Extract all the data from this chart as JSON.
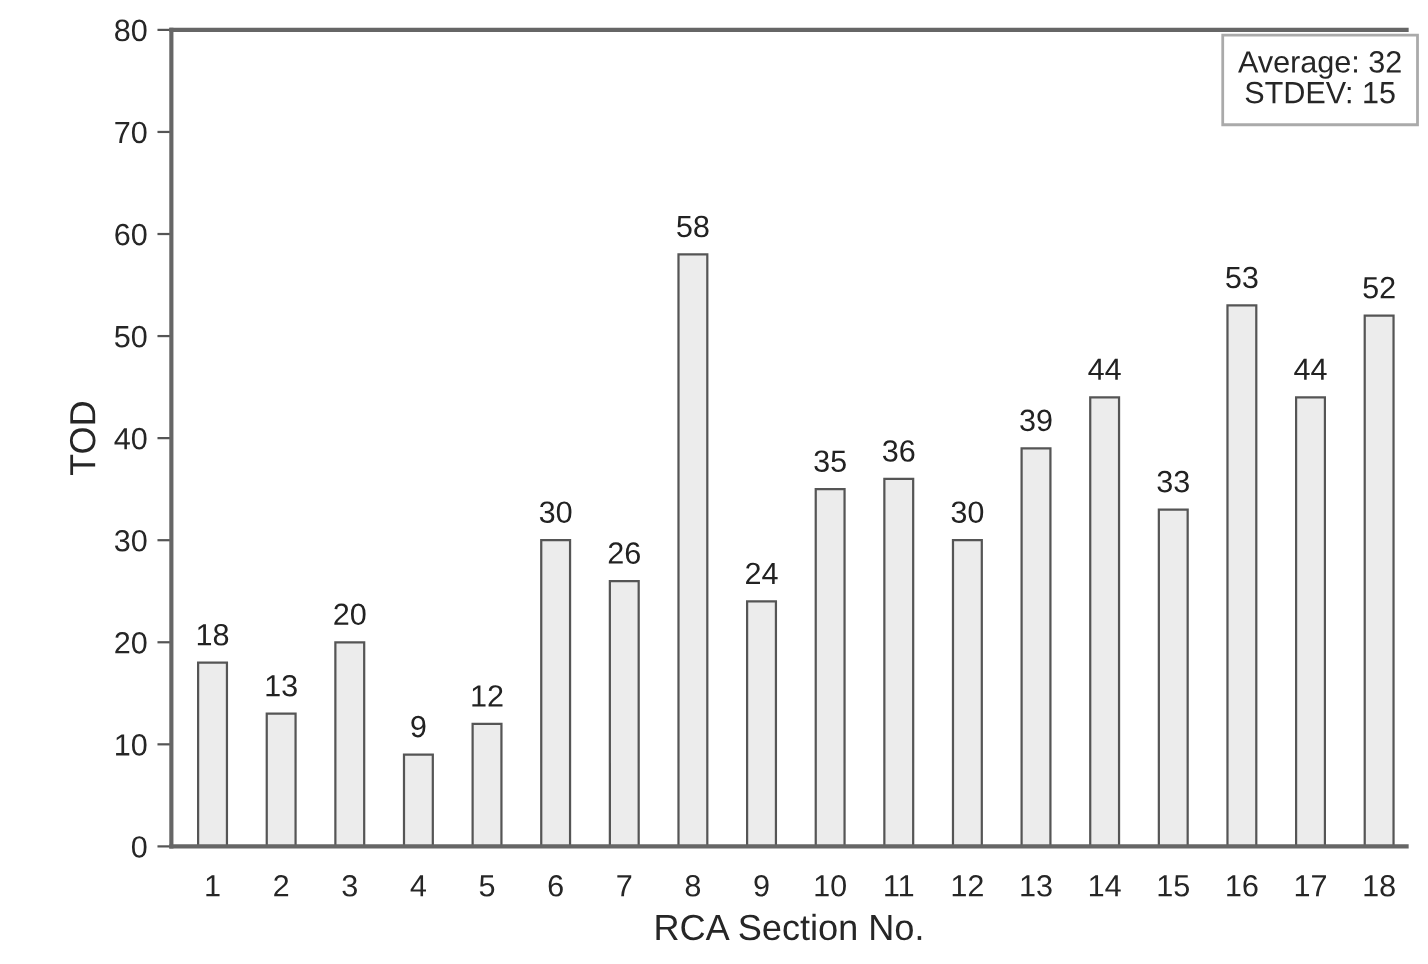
{
  "chart_data": {
    "type": "bar",
    "xlabel": "RCA Section No.",
    "ylabel": "TOD",
    "categories": [
      "1",
      "2",
      "3",
      "4",
      "5",
      "6",
      "7",
      "8",
      "9",
      "10",
      "11",
      "12",
      "13",
      "14",
      "15",
      "16",
      "17",
      "18"
    ],
    "values": [
      18,
      13,
      20,
      9,
      12,
      30,
      26,
      58,
      24,
      35,
      36,
      30,
      39,
      44,
      33,
      53,
      44,
      52
    ],
    "color": "#ececec",
    "ylim": [
      0,
      80
    ],
    "yticks": [
      0,
      10,
      20,
      30,
      40,
      50,
      60,
      70,
      80
    ],
    "data_labels": true,
    "grid": false,
    "annotations": [
      "Average: 32",
      "STDEV: 15"
    ]
  }
}
